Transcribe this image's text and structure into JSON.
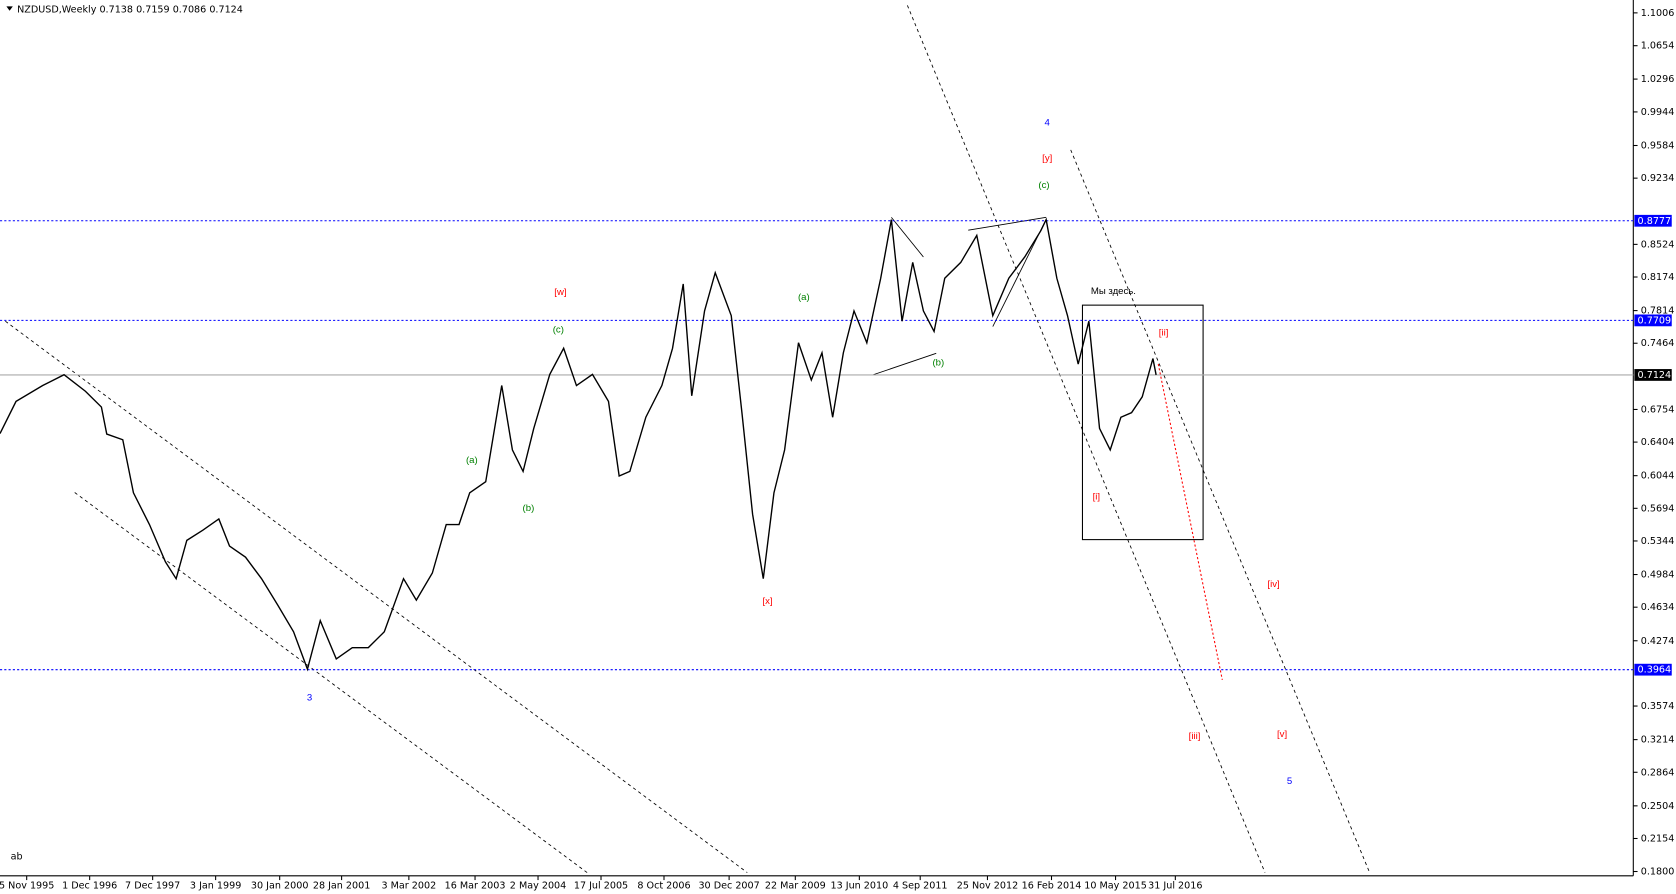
{
  "chart_data": {
    "type": "line",
    "title": "NZDUSD,Weekly  0.7138 0.7159 0.7086 0.7124",
    "corner_text": "ab",
    "series": [
      {
        "name": "NZDUSD",
        "color": "#000000",
        "x": [
          0,
          15,
          40,
          60,
          80,
          95,
          100,
          115,
          125,
          140,
          155,
          165,
          175,
          190,
          205,
          215,
          230,
          245,
          260,
          275,
          288,
          300,
          315,
          330,
          345,
          360,
          378,
          390,
          405,
          418,
          430,
          440,
          455,
          470,
          480,
          490,
          500,
          515,
          528,
          540,
          555,
          570,
          580,
          590,
          605,
          620,
          630,
          640,
          648,
          660,
          670,
          685,
          695,
          705,
          715,
          725,
          735,
          748,
          760,
          770,
          780,
          790,
          800,
          812,
          825,
          835,
          845,
          855,
          865,
          875,
          885,
          900,
          915,
          930,
          945,
          960,
          975,
          980,
          990,
          1000,
          1010,
          1020,
          1030,
          1040,
          1050,
          1060,
          1070,
          1080,
          1083
        ],
        "values": [
          0.6495,
          0.684,
          0.701,
          0.7126,
          0.695,
          0.678,
          0.649,
          0.643,
          0.586,
          0.552,
          0.512,
          0.494,
          0.535,
          0.546,
          0.558,
          0.529,
          0.517,
          0.494,
          0.466,
          0.437,
          0.397,
          0.449,
          0.408,
          0.42,
          0.42,
          0.437,
          0.494,
          0.471,
          0.5,
          0.552,
          0.552,
          0.586,
          0.598,
          0.701,
          0.632,
          0.609,
          0.655,
          0.713,
          0.741,
          0.701,
          0.713,
          0.684,
          0.604,
          0.609,
          0.667,
          0.701,
          0.741,
          0.81,
          0.69,
          0.781,
          0.822,
          0.776,
          0.672,
          0.563,
          0.494,
          0.586,
          0.632,
          0.747,
          0.707,
          0.736,
          0.667,
          0.736,
          0.781,
          0.747,
          0.816,
          0.879,
          0.77,
          0.833,
          0.781,
          0.759,
          0.816,
          0.833,
          0.862,
          0.776,
          0.816,
          0.839,
          0.867,
          0.879,
          0.816,
          0.776,
          0.724,
          0.77,
          0.655,
          0.632,
          0.667,
          0.672,
          0.689,
          0.73,
          0.7124
        ]
      }
    ],
    "xlim": [
      0,
      1530
    ],
    "xticks": [
      {
        "value": 25,
        "label": "5 Nov 1995"
      },
      {
        "value": 84,
        "label": "1 Dec 1996"
      },
      {
        "value": 143,
        "label": "7 Dec 1997"
      },
      {
        "value": 202,
        "label": "3 Jan 1999"
      },
      {
        "value": 262,
        "label": "30 Jan 2000"
      },
      {
        "value": 320,
        "label": "28 Jan 2001"
      },
      {
        "value": 383,
        "label": "3 Mar 2002"
      },
      {
        "value": 445,
        "label": "16 Mar 2003"
      },
      {
        "value": 504,
        "label": "2 May 2004"
      },
      {
        "value": 563,
        "label": "17 Jul 2005"
      },
      {
        "value": 622,
        "label": "8 Oct 2006"
      },
      {
        "value": 683,
        "label": "30 Dec 2007"
      },
      {
        "value": 745,
        "label": "22 Mar 2009"
      },
      {
        "value": 805,
        "label": "13 Jun 2010"
      },
      {
        "value": 862,
        "label": "4 Sep 2011"
      },
      {
        "value": 925,
        "label": "25 Nov 2012"
      },
      {
        "value": 985,
        "label": "16 Feb 2014"
      },
      {
        "value": 1045,
        "label": "10 May 2015"
      },
      {
        "value": 1101,
        "label": "31 Jul 2016"
      }
    ],
    "ylim": [
      0.1754,
      1.1144
    ],
    "yticks": [
      1.1006,
      1.0654,
      1.0296,
      0.9944,
      0.9584,
      0.9234,
      0.8524,
      0.8174,
      0.7814,
      0.7464,
      0.6754,
      0.6404,
      0.6044,
      0.5694,
      0.5344,
      0.4984,
      0.4634,
      0.4274,
      0.3574,
      0.3214,
      0.2864,
      0.2504,
      0.2154,
      {
        "value": 0.18,
        "label": "0.1800"
      }
    ],
    "levels": [
      {
        "value": 0.8777,
        "color": "#0000ff"
      },
      {
        "value": 0.7709,
        "color": "#0000ff"
      },
      {
        "value": 0.7124,
        "color": "#000000"
      },
      {
        "value": 0.3964,
        "color": "#0000ff"
      }
    ],
    "annotations": [
      {
        "text": "3",
        "color": "#0000ff"
      },
      {
        "text": "(a)",
        "color": "#008000"
      },
      {
        "text": "(b)",
        "color": "#008000"
      },
      {
        "text": "(c)",
        "color": "#008000"
      },
      {
        "text": "[w]",
        "color": "#ff0000"
      },
      {
        "text": "[x]",
        "color": "#ff0000"
      },
      {
        "text": "(a)",
        "color": "#008000"
      },
      {
        "text": "(b)",
        "color": "#008000"
      },
      {
        "text": "(c)",
        "color": "#008000"
      },
      {
        "text": "[y]",
        "color": "#ff0000"
      },
      {
        "text": "4",
        "color": "#0000ff"
      },
      {
        "text": "[i]",
        "color": "#ff0000"
      },
      {
        "text": "[ii]",
        "color": "#ff0000"
      },
      {
        "text": "[iii]",
        "color": "#ff0000"
      },
      {
        "text": "[iv]",
        "color": "#ff0000"
      },
      {
        "text": "[v]",
        "color": "#ff0000"
      },
      {
        "text": "5",
        "color": "#0000ff"
      },
      {
        "text": "Мы здесь.",
        "color": "#000000"
      }
    ]
  }
}
